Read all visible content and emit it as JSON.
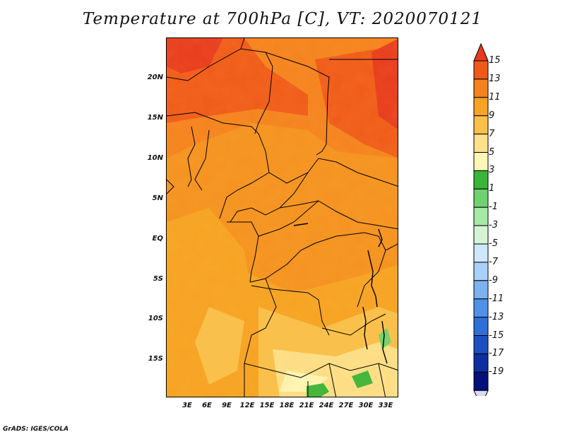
{
  "title": "Temperature at 700hPa [C], VT: 2020070121",
  "footer": "GrADS: IGES/COLA",
  "map": {
    "region": "Central and Southern-Central Africa",
    "lat_labels": [
      "20N",
      "15N",
      "10N",
      "5N",
      "EQ",
      "5S",
      "10S",
      "15S"
    ],
    "lon_labels": [
      "3E",
      "6E",
      "9E",
      "12E",
      "15E",
      "18E",
      "21E",
      "24E",
      "27E",
      "30E",
      "33E"
    ]
  },
  "colorbar": {
    "labels": [
      "15",
      "13",
      "11",
      "9",
      "7",
      "5",
      "3",
      "1",
      "-1",
      "-3",
      "-5",
      "-7",
      "-9",
      "-11",
      "-13",
      "-15",
      "-17",
      "-19"
    ],
    "colors": [
      "#e83a1d",
      "#f05a19",
      "#f5821e",
      "#f7a323",
      "#f9c04a",
      "#fde08a",
      "#fdf7b6",
      "#3ab53a",
      "#6fd26f",
      "#a6e8a6",
      "#d6f3d6",
      "#cfe7fa",
      "#a9d0f7",
      "#7cb2ef",
      "#4f91e6",
      "#2f6fd8",
      "#1e4fc2",
      "#0e2f9f",
      "#06107a",
      "#d8d8f8"
    ]
  }
}
